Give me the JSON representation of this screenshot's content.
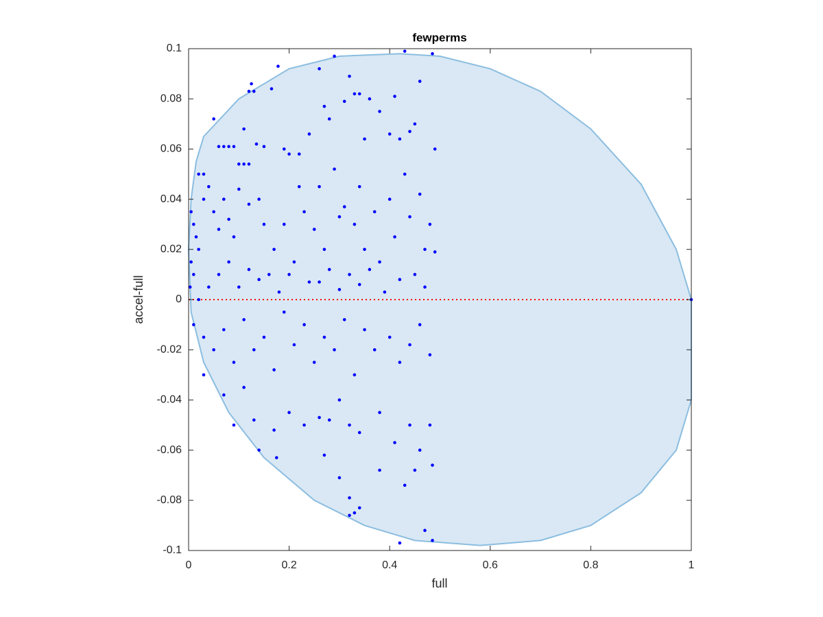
{
  "chart_data": {
    "type": "scatter",
    "title": "fewperms",
    "x_label": "full",
    "y_label": "accel-full",
    "xlim": [
      0,
      1
    ],
    "ylim": [
      -0.1,
      0.1
    ],
    "xticks": [
      0,
      0.2,
      0.4,
      0.6,
      0.8,
      1
    ],
    "yticks": [
      -0.1,
      -0.08,
      -0.06,
      -0.04,
      -0.02,
      0,
      0.02,
      0.04,
      0.06,
      0.08,
      0.1
    ],
    "grid": false,
    "region": {
      "color": "#d9e8f4",
      "edge_color": "#8bbde0",
      "x": [
        0.015,
        0.03,
        0.1,
        0.2,
        0.3,
        0.42,
        0.5,
        0.6,
        0.7,
        0.8,
        0.9,
        0.97,
        1,
        1,
        0.97,
        0.9,
        0.8,
        0.7,
        0.58,
        0.45,
        0.35,
        0.25,
        0.15,
        0.08,
        0.03,
        0.005,
        0,
        0.005
      ],
      "y": [
        0.055,
        0.065,
        0.08,
        0.092,
        0.097,
        0.098,
        0.097,
        0.092,
        0.083,
        0.068,
        0.046,
        0.02,
        0,
        -0.04,
        -0.06,
        -0.077,
        -0.09,
        -0.096,
        -0.098,
        -0.096,
        -0.09,
        -0.08,
        -0.063,
        -0.045,
        -0.025,
        -0.005,
        0.02,
        0.04
      ]
    },
    "reference_line": {
      "y": 0,
      "color": "#ff0000"
    },
    "series": [
      {
        "color": "#0000ff",
        "x": [
          0.05,
          0.12,
          0.125,
          0.13,
          0.165,
          0.178,
          0.26,
          0.29,
          0.43,
          0.485,
          0.32,
          0.34,
          0.33,
          0.46,
          0.41,
          0.27,
          0.31,
          0.36,
          0.38,
          0.45,
          0.44,
          0.49,
          0.11,
          0.06,
          0.07,
          0.08,
          0.09,
          0.1,
          0.11,
          0.12,
          0.135,
          0.15,
          0.19,
          0.2,
          0.22,
          0.24,
          0.28,
          0.35,
          0.4,
          0.42,
          0.03,
          0.02,
          0.005,
          0.01,
          0.015,
          0.02,
          0.005,
          0.01,
          0.003,
          0.03,
          0.04,
          0.05,
          0.06,
          0.07,
          0.08,
          0.09,
          0.1,
          0.12,
          0.14,
          0.15,
          0.17,
          0.19,
          0.2,
          0.22,
          0.23,
          0.25,
          0.26,
          0.27,
          0.29,
          0.3,
          0.31,
          0.33,
          0.34,
          0.35,
          0.37,
          0.38,
          0.4,
          0.41,
          0.43,
          0.44,
          0.46,
          0.47,
          0.48,
          0.49,
          0.02,
          0.04,
          0.06,
          0.08,
          0.1,
          0.12,
          0.14,
          0.16,
          0.18,
          0.21,
          0.24,
          0.26,
          0.28,
          0.3,
          0.32,
          0.34,
          0.36,
          0.39,
          0.42,
          0.45,
          0.47,
          0.01,
          0.03,
          0.05,
          0.07,
          0.09,
          0.11,
          0.13,
          0.15,
          0.17,
          0.19,
          0.21,
          0.23,
          0.25,
          0.27,
          0.29,
          0.31,
          0.33,
          0.35,
          0.37,
          0.4,
          0.42,
          0.44,
          0.46,
          0.48,
          0.03,
          0.07,
          0.09,
          0.11,
          0.13,
          0.14,
          0.17,
          0.175,
          0.2,
          0.23,
          0.26,
          0.28,
          0.3,
          0.32,
          0.34,
          0.38,
          0.41,
          0.44,
          0.46,
          0.48,
          0.27,
          0.3,
          0.32,
          0.34,
          0.38,
          0.43,
          0.45,
          0.485,
          0.32,
          0.33,
          0.47,
          0.485,
          0.42,
          1
        ],
        "values": [
          0.072,
          0.083,
          0.086,
          0.083,
          0.084,
          0.093,
          0.092,
          0.097,
          0.099,
          0.098,
          0.089,
          0.082,
          0.082,
          0.087,
          0.081,
          0.077,
          0.079,
          0.08,
          0.075,
          0.07,
          0.067,
          0.06,
          0.068,
          0.061,
          0.061,
          0.061,
          0.061,
          0.054,
          0.054,
          0.054,
          0.062,
          0.061,
          0.06,
          0.058,
          0.058,
          0.066,
          0.072,
          0.064,
          0.066,
          0.064,
          0.05,
          0.05,
          0.035,
          0.03,
          0.025,
          0.02,
          0.015,
          0.01,
          0.005,
          0.04,
          0.045,
          0.035,
          0.028,
          0.04,
          0.032,
          0.025,
          0.044,
          0.038,
          0.04,
          0.03,
          0.02,
          0.03,
          0.01,
          0.045,
          0.035,
          0.028,
          0.045,
          0.02,
          0.052,
          0.033,
          0.037,
          0.03,
          0.045,
          0.02,
          0.035,
          0.015,
          0.04,
          0.025,
          0.05,
          0.033,
          0.042,
          0.02,
          0.03,
          0.019,
          0,
          0.005,
          0.01,
          0.015,
          0.005,
          0.012,
          0.008,
          0.01,
          0.003,
          0.015,
          0.007,
          0.007,
          0.012,
          0.004,
          0.01,
          0.006,
          0.012,
          0.003,
          0.008,
          0.01,
          0.005,
          -0.01,
          -0.015,
          -0.02,
          -0.012,
          -0.025,
          -0.008,
          -0.02,
          -0.015,
          -0.028,
          -0.005,
          -0.018,
          -0.01,
          -0.025,
          -0.015,
          -0.02,
          -0.008,
          -0.03,
          -0.012,
          -0.02,
          -0.015,
          -0.025,
          -0.018,
          -0.01,
          -0.022,
          -0.03,
          -0.038,
          -0.05,
          -0.035,
          -0.048,
          -0.06,
          -0.052,
          -0.063,
          -0.045,
          -0.05,
          -0.047,
          -0.048,
          -0.04,
          -0.05,
          -0.053,
          -0.045,
          -0.057,
          -0.05,
          -0.06,
          -0.05,
          -0.062,
          -0.071,
          -0.079,
          -0.083,
          -0.068,
          -0.074,
          -0.068,
          -0.066,
          -0.086,
          -0.085,
          -0.092,
          -0.096,
          -0.097,
          0
        ]
      }
    ]
  }
}
